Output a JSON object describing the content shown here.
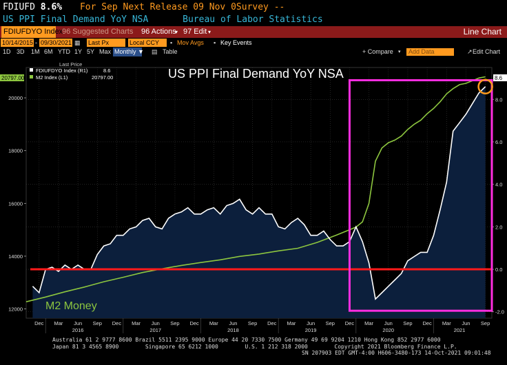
{
  "header": {
    "ticker": "FDIUFD",
    "value": "8.6%",
    "next_release": "For Sep Next Release 09 Nov 0Survey --",
    "series_title": "US PPI Final Demand YoY NSA",
    "source": "Bureau of Labor Statistics",
    "color_ticker": "#ffffff",
    "color_orange": "#ff9a1f",
    "color_cyan": "#38b7d8"
  },
  "toolbar": {
    "ticker_field": "FDIUFDYO Index",
    "suggested": "96 Suggested Charts",
    "actions": "96 Actions",
    "edit": "97 Edit",
    "chart_type": "Line Chart"
  },
  "controls": {
    "start_date": "10/14/2015",
    "end_date": "09/30/2021",
    "last_px": "Last Px",
    "currency": "Local CCY",
    "mov_avgs": "Mov Avgs",
    "key_events": "Key Events",
    "ranges": [
      "1D",
      "3D",
      "1M",
      "6M",
      "YTD",
      "1Y",
      "5Y",
      "Max"
    ],
    "periodicity": "Monthly",
    "table": "Table",
    "compare": "+ Compare",
    "add_data": "Add Data",
    "edit_chart": "Edit Chart"
  },
  "chart_data": {
    "type": "line",
    "title": "US PPI Final Demand YoY NSA",
    "annotation": "M2 Money",
    "legend_header": "Last Price",
    "legend_placement": "top-left",
    "series": [
      {
        "name": "FDIUFDYO Index (R1)",
        "last": "8.6",
        "axis": "right",
        "color": "#ffffff",
        "fill": "#0c1f3c",
        "points": [
          [
            "2015-11",
            -0.8
          ],
          [
            "2015-12",
            -1.1
          ],
          [
            "2016-01",
            0.0
          ],
          [
            "2016-02",
            0.1
          ],
          [
            "2016-03",
            -0.1
          ],
          [
            "2016-04",
            0.2
          ],
          [
            "2016-05",
            0.0
          ],
          [
            "2016-06",
            0.2
          ],
          [
            "2016-07",
            0.0
          ],
          [
            "2016-08",
            0.0
          ],
          [
            "2016-09",
            0.7
          ],
          [
            "2016-10",
            1.1
          ],
          [
            "2016-11",
            1.2
          ],
          [
            "2016-12",
            1.6
          ],
          [
            "2017-01",
            1.6
          ],
          [
            "2017-02",
            1.9
          ],
          [
            "2017-03",
            2.0
          ],
          [
            "2017-04",
            2.3
          ],
          [
            "2017-05",
            2.4
          ],
          [
            "2017-06",
            2.0
          ],
          [
            "2017-07",
            1.9
          ],
          [
            "2017-08",
            2.4
          ],
          [
            "2017-09",
            2.6
          ],
          [
            "2017-10",
            2.7
          ],
          [
            "2017-11",
            2.9
          ],
          [
            "2017-12",
            2.6
          ],
          [
            "2018-01",
            2.6
          ],
          [
            "2018-02",
            2.8
          ],
          [
            "2018-03",
            2.9
          ],
          [
            "2018-04",
            2.6
          ],
          [
            "2018-05",
            3.0
          ],
          [
            "2018-06",
            3.1
          ],
          [
            "2018-07",
            3.3
          ],
          [
            "2018-08",
            2.8
          ],
          [
            "2018-09",
            2.6
          ],
          [
            "2018-10",
            2.9
          ],
          [
            "2018-11",
            2.6
          ],
          [
            "2018-12",
            2.6
          ],
          [
            "2019-01",
            2.0
          ],
          [
            "2019-02",
            1.9
          ],
          [
            "2019-03",
            2.2
          ],
          [
            "2019-04",
            2.4
          ],
          [
            "2019-05",
            2.1
          ],
          [
            "2019-06",
            1.6
          ],
          [
            "2019-07",
            1.6
          ],
          [
            "2019-08",
            1.8
          ],
          [
            "2019-09",
            1.4
          ],
          [
            "2019-10",
            1.1
          ],
          [
            "2019-11",
            1.1
          ],
          [
            "2019-12",
            1.3
          ],
          [
            "2020-01",
            2.0
          ],
          [
            "2020-02",
            1.3
          ],
          [
            "2020-03",
            0.3
          ],
          [
            "2020-04",
            -1.4
          ],
          [
            "2020-05",
            -1.1
          ],
          [
            "2020-06",
            -0.8
          ],
          [
            "2020-07",
            -0.5
          ],
          [
            "2020-08",
            -0.2
          ],
          [
            "2020-09",
            0.4
          ],
          [
            "2020-10",
            0.6
          ],
          [
            "2020-11",
            0.8
          ],
          [
            "2020-12",
            0.8
          ],
          [
            "2021-01",
            1.6
          ],
          [
            "2021-02",
            2.8
          ],
          [
            "2021-03",
            4.1
          ],
          [
            "2021-04",
            6.5
          ],
          [
            "2021-05",
            6.9
          ],
          [
            "2021-06",
            7.3
          ],
          [
            "2021-07",
            7.8
          ],
          [
            "2021-08",
            8.3
          ],
          [
            "2021-09",
            8.6
          ]
        ]
      },
      {
        "name": "M2 Index (L1)",
        "last": "20797.00",
        "axis": "left",
        "color": "#8dc63f",
        "points": [
          [
            "2015-10",
            12270
          ],
          [
            "2016-01",
            12450
          ],
          [
            "2016-04",
            12650
          ],
          [
            "2016-07",
            12830
          ],
          [
            "2016-10",
            13030
          ],
          [
            "2017-01",
            13200
          ],
          [
            "2017-04",
            13380
          ],
          [
            "2017-07",
            13520
          ],
          [
            "2017-10",
            13650
          ],
          [
            "2018-01",
            13760
          ],
          [
            "2018-04",
            13860
          ],
          [
            "2018-07",
            13990
          ],
          [
            "2018-10",
            14080
          ],
          [
            "2019-01",
            14200
          ],
          [
            "2019-04",
            14300
          ],
          [
            "2019-07",
            14520
          ],
          [
            "2019-10",
            14800
          ],
          [
            "2020-01",
            15100
          ],
          [
            "2020-02",
            15300
          ],
          [
            "2020-03",
            16000
          ],
          [
            "2020-04",
            17600
          ],
          [
            "2020-05",
            18100
          ],
          [
            "2020-06",
            18300
          ],
          [
            "2020-07",
            18400
          ],
          [
            "2020-08",
            18550
          ],
          [
            "2020-09",
            18800
          ],
          [
            "2020-10",
            19000
          ],
          [
            "2020-11",
            19150
          ],
          [
            "2020-12",
            19400
          ],
          [
            "2021-01",
            19600
          ],
          [
            "2021-02",
            19850
          ],
          [
            "2021-03",
            20150
          ],
          [
            "2021-04",
            20350
          ],
          [
            "2021-05",
            20500
          ],
          [
            "2021-06",
            20550
          ],
          [
            "2021-07",
            20650
          ],
          [
            "2021-08",
            20750
          ],
          [
            "2021-09",
            20797
          ]
        ]
      }
    ],
    "left_axis": {
      "ylim": [
        11650,
        21150
      ],
      "ticks": [
        12000,
        14000,
        16000,
        18000,
        20000
      ],
      "labels": [
        "12000",
        "14000",
        "16000",
        "18000",
        "20000"
      ],
      "current": "20797.00"
    },
    "right_axis": {
      "ylim": [
        -2.3,
        9.5
      ],
      "ticks": [
        -2.0,
        0.0,
        2.0,
        4.0,
        6.0,
        8.0
      ],
      "labels": [
        "-2.0",
        "0.0",
        "2.0",
        "4.0",
        "6.0",
        "8.0"
      ],
      "current": "8.6"
    },
    "x_month_ticks": [
      [
        "2015-12",
        "Dec"
      ],
      [
        "2016-03",
        "Mar"
      ],
      [
        "2016-06",
        "Jun"
      ],
      [
        "2016-09",
        "Sep"
      ],
      [
        "2016-12",
        "Dec"
      ],
      [
        "2017-03",
        "Mar"
      ],
      [
        "2017-06",
        "Jun"
      ],
      [
        "2017-09",
        "Sep"
      ],
      [
        "2017-12",
        "Dec"
      ],
      [
        "2018-03",
        "Mar"
      ],
      [
        "2018-06",
        "Jun"
      ],
      [
        "2018-09",
        "Sep"
      ],
      [
        "2018-12",
        "Dec"
      ],
      [
        "2019-03",
        "Mar"
      ],
      [
        "2019-06",
        "Jun"
      ],
      [
        "2019-09",
        "Sep"
      ],
      [
        "2019-12",
        "Dec"
      ],
      [
        "2020-03",
        "Mar"
      ],
      [
        "2020-06",
        "Jun"
      ],
      [
        "2020-09",
        "Sep"
      ],
      [
        "2020-12",
        "Dec"
      ],
      [
        "2021-03",
        "Mar"
      ],
      [
        "2021-06",
        "Jun"
      ],
      [
        "2021-09",
        "Sep"
      ]
    ],
    "x_year_ticks": [
      [
        "2016-06",
        "2016"
      ],
      [
        "2017-06",
        "2017"
      ],
      [
        "2018-06",
        "2018"
      ],
      [
        "2019-06",
        "2019"
      ],
      [
        "2020-06",
        "2020"
      ],
      [
        "2021-05",
        "2021"
      ]
    ],
    "reference_line": {
      "axis": "right",
      "value": 0.0,
      "color": "#ff1a1a"
    },
    "highlight_box": {
      "x_from": "2019-12",
      "x_to": "2021-10",
      "y_from": -1.95,
      "y_to": 8.9,
      "color": "#ff2de0"
    },
    "highlight_circle": {
      "x": "2021-09",
      "y": 8.6,
      "color": "#ff9a1f"
    },
    "grid": true
  },
  "footer": {
    "line1": "Australia 61 2 9777 8600 Brazil 5511 2395 9000 Europe 44 20 7330 7500 Germany 49 69 9204 1210 Hong Kong 852 2977 6000",
    "line2": "Japan 81 3 4565 8900        Singapore 65 6212 1000        U.S. 1 212 318 2000        Copyright 2021 Bloomberg Finance L.P.",
    "line3": "SN 207903 EDT  GMT-4:00 H606-3480-173 14-Oct-2021 09:01:48"
  }
}
